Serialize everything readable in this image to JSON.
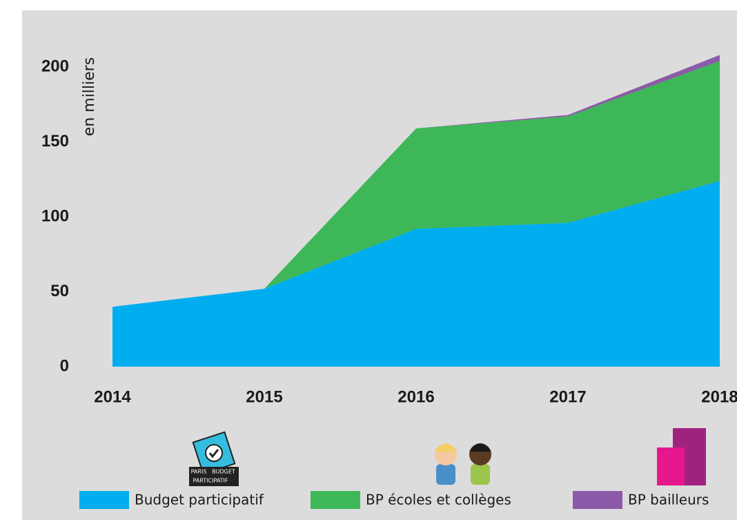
{
  "chart_data": {
    "type": "stacked-area",
    "y_label": "en milliers",
    "categories": [
      "2014",
      "2015",
      "2016",
      "2017",
      "2018"
    ],
    "series": [
      {
        "name": "Budget participatif",
        "color": "#00adef",
        "values": [
          40,
          52,
          92,
          96,
          124
        ]
      },
      {
        "name": "BP écoles et collèges",
        "color": "#3db757",
        "values": [
          0,
          0,
          67,
          71,
          80
        ]
      },
      {
        "name": "BP bailleurs",
        "color": "#8c5aa8",
        "values": [
          0,
          0,
          0,
          1,
          4
        ]
      }
    ],
    "ylim": [
      0,
      200
    ],
    "yticks": [
      0,
      50,
      100,
      150,
      200
    ],
    "grid": false,
    "icon_text": [
      "PARIS",
      "BUDGET",
      "PARTICIPATIF"
    ]
  }
}
